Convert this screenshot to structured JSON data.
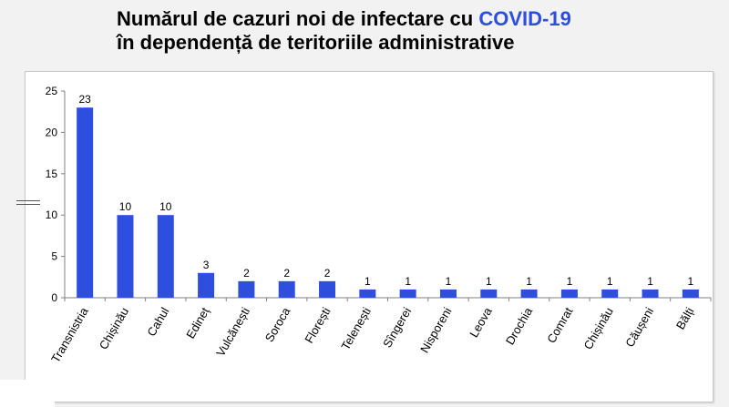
{
  "title": {
    "line1_part1": "Numărul de cazuri noi de infectare cu ",
    "line1_accent": "COVID-19",
    "line2": "în dependență de teritoriile administrative"
  },
  "colors": {
    "bar": "#2e4ee0",
    "accent": "#2e4ee0",
    "axis": "#808080",
    "background": "#f2f2f2"
  },
  "chart_data": {
    "type": "bar",
    "title": "Numărul de cazuri noi de infectare cu COVID-19 în dependență de teritoriile administrative",
    "xlabel": "",
    "ylabel": "",
    "ylim": [
      0,
      25
    ],
    "yticks": [
      0,
      5,
      10,
      15,
      20,
      25
    ],
    "grid": false,
    "legend": "none",
    "categories": [
      "Transnistria",
      "Chișinău",
      "Cahul",
      "Edineț",
      "Vulcănești",
      "Soroca",
      "Florești",
      "Telenești",
      "Sîngerei",
      "Nisporeni",
      "Leova",
      "Drochia",
      "Comrat",
      "Chișinău",
      "Căușeni",
      "Bălți"
    ],
    "values": [
      23,
      10,
      10,
      3,
      2,
      2,
      2,
      1,
      1,
      1,
      1,
      1,
      1,
      1,
      1,
      1
    ]
  }
}
